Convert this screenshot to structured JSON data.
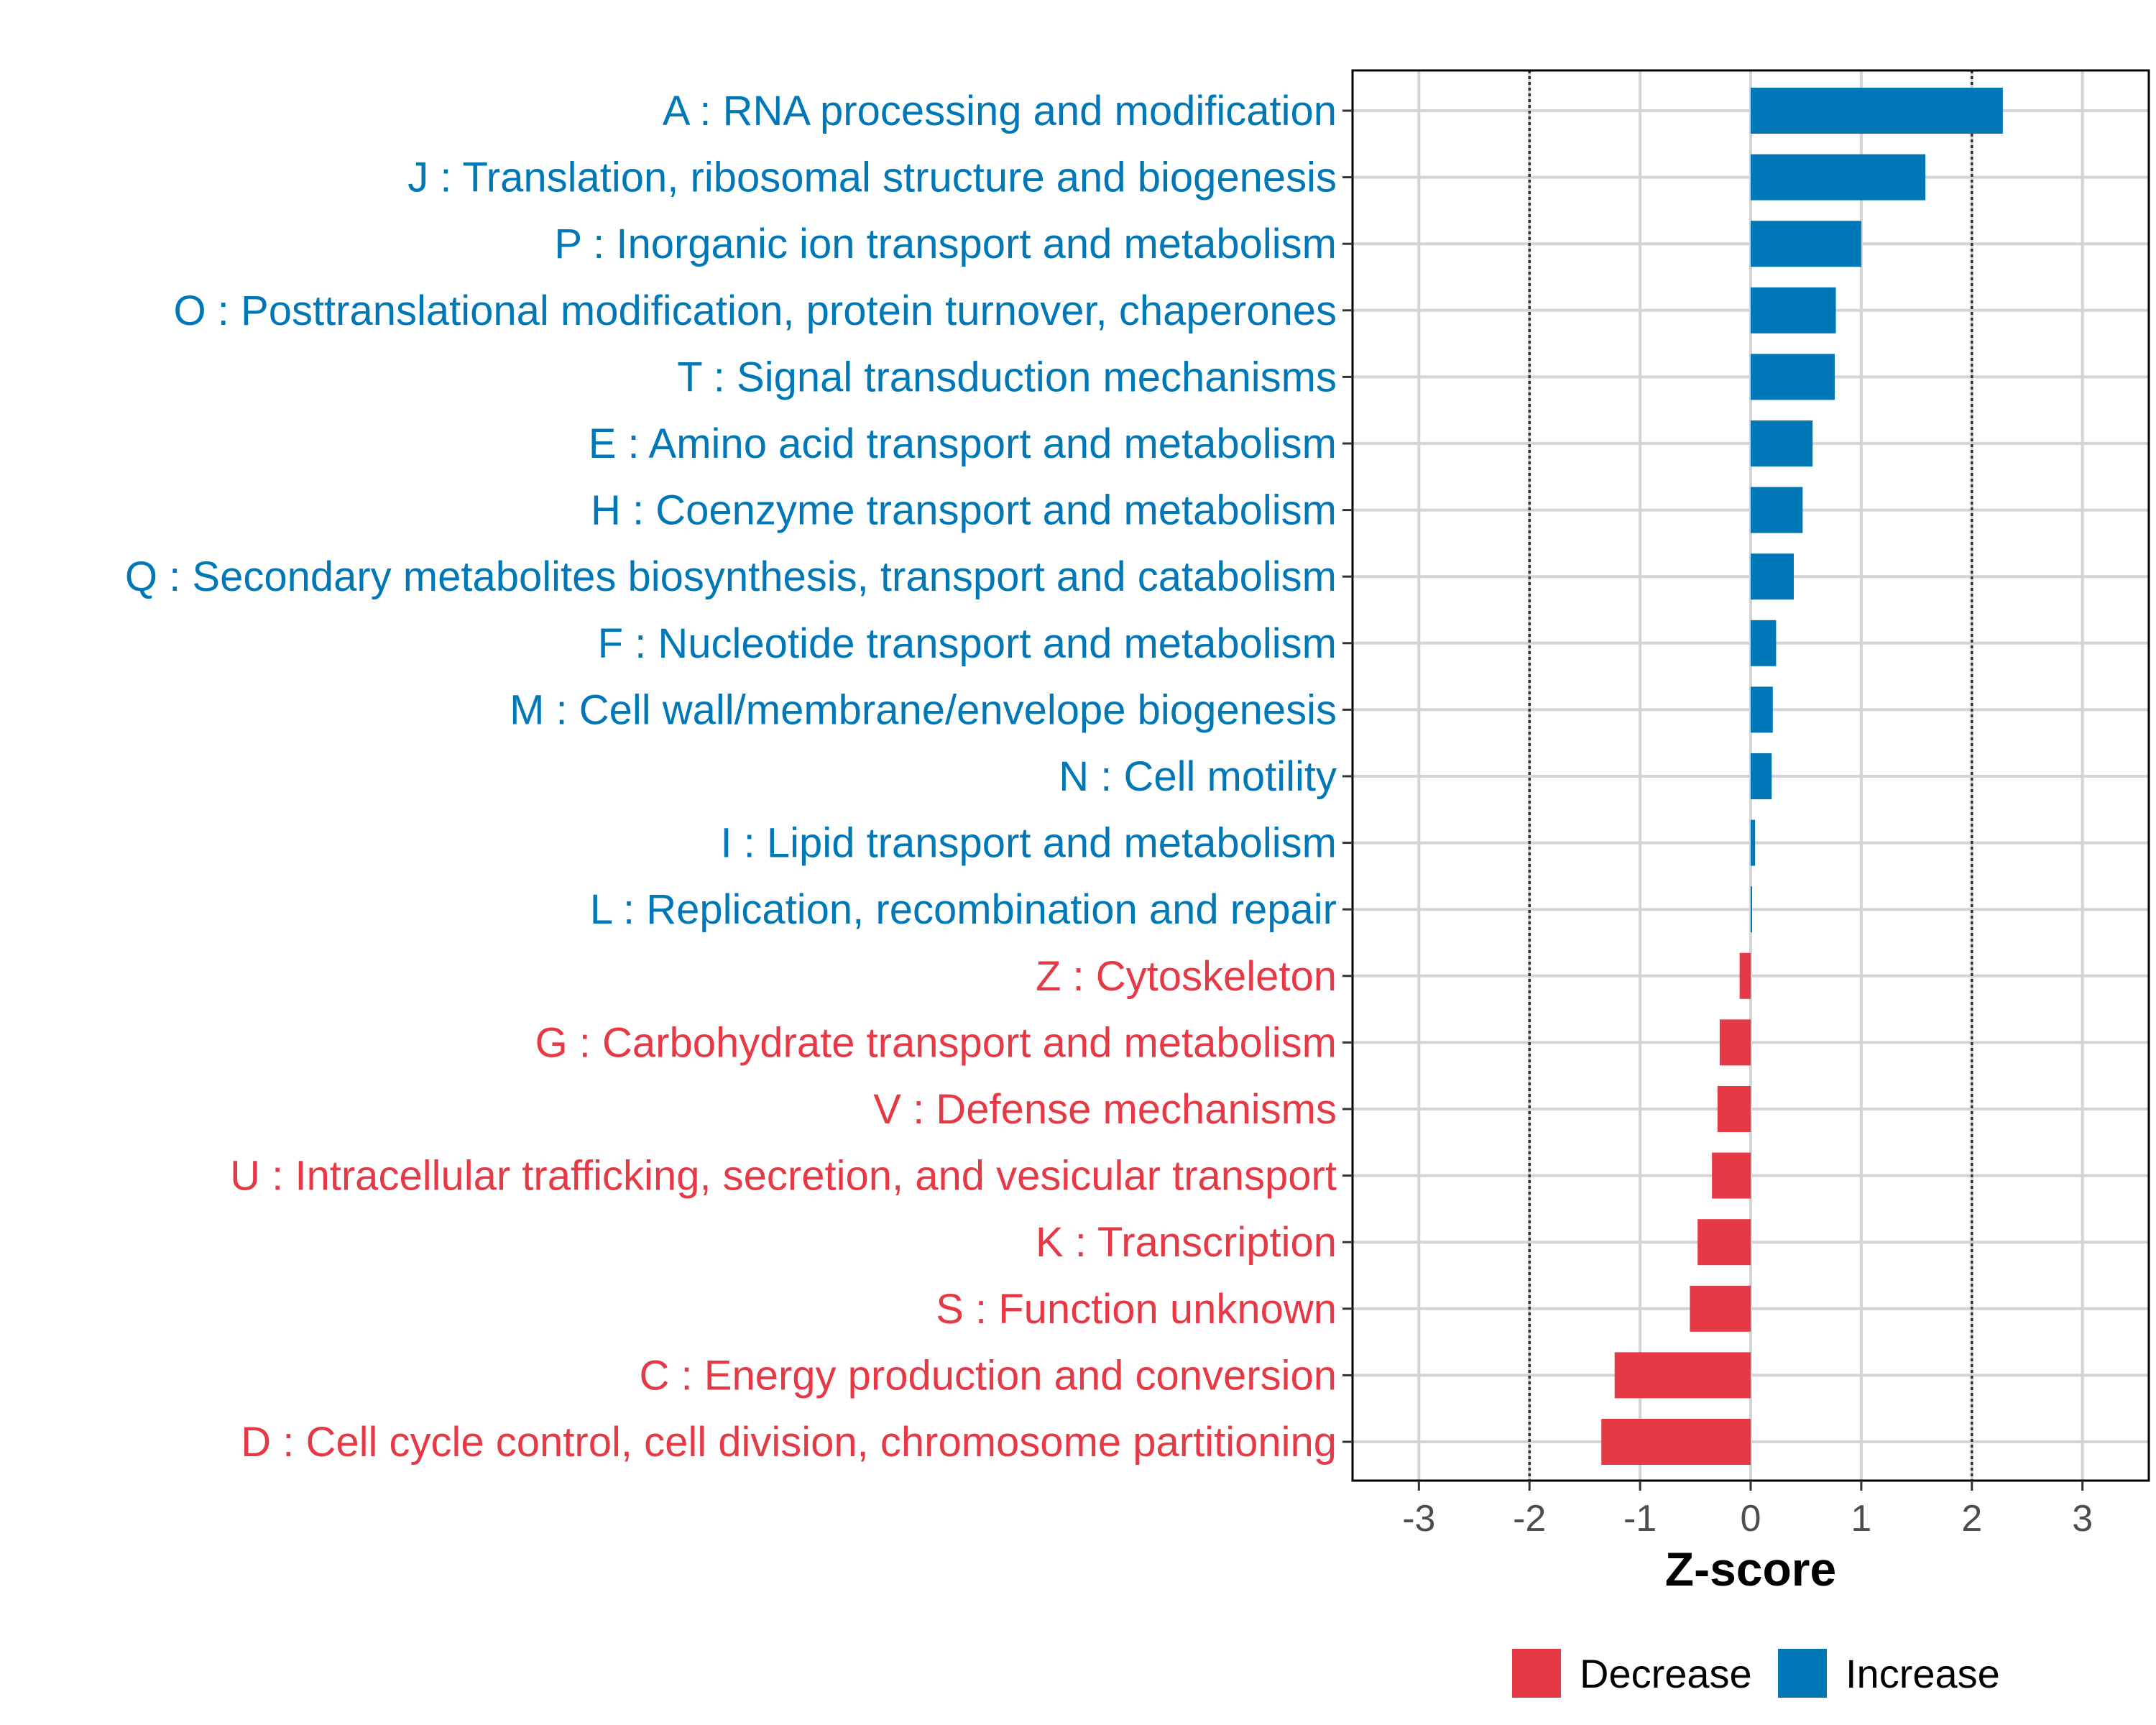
{
  "chart_data": {
    "type": "bar",
    "orientation": "horizontal",
    "title": "",
    "xlabel": "Z-score",
    "ylabel": "",
    "xlim": [
      -3.6,
      3.6
    ],
    "xticks": [
      -3,
      -2,
      -1,
      0,
      1,
      2,
      3
    ],
    "xtick_labels": [
      "-3",
      "-2",
      "-1",
      "0",
      "1",
      "2",
      "3"
    ],
    "threshold_lines": [
      -2,
      2
    ],
    "grid": true,
    "categories": [
      "A : RNA processing and modification",
      "J : Translation, ribosomal structure and biogenesis",
      "P : Inorganic ion transport and metabolism",
      "O : Posttranslational modification, protein turnover, chaperones",
      "T : Signal transduction mechanisms",
      "E : Amino acid transport and metabolism",
      "H : Coenzyme transport and metabolism",
      "Q : Secondary metabolites biosynthesis, transport and catabolism",
      "F : Nucleotide transport and metabolism",
      "M : Cell wall/membrane/envelope biogenesis",
      "N : Cell motility",
      "I : Lipid transport and metabolism",
      "L : Replication, recombination and repair",
      "Z : Cytoskeleton",
      "G : Carbohydrate transport and metabolism",
      "V : Defense mechanisms",
      "U : Intracellular trafficking, secretion, and vesicular transport",
      "K : Transcription",
      "S : Function unknown",
      "C : Energy production and conversion",
      "D : Cell cycle control, cell division, chromosome partitioning"
    ],
    "values": [
      2.28,
      1.58,
      1.0,
      0.77,
      0.76,
      0.56,
      0.47,
      0.39,
      0.23,
      0.2,
      0.19,
      0.04,
      0.01,
      -0.1,
      -0.28,
      -0.3,
      -0.35,
      -0.48,
      -0.55,
      -1.23,
      -1.35
    ],
    "groups": [
      "Increase",
      "Increase",
      "Increase",
      "Increase",
      "Increase",
      "Increase",
      "Increase",
      "Increase",
      "Increase",
      "Increase",
      "Increase",
      "Increase",
      "Increase",
      "Decrease",
      "Decrease",
      "Decrease",
      "Decrease",
      "Decrease",
      "Decrease",
      "Decrease",
      "Decrease"
    ],
    "legend": [
      {
        "label": "Decrease",
        "color": "#E63946"
      },
      {
        "label": "Increase",
        "color": "#0077B6"
      }
    ],
    "legend_position": "bottom"
  }
}
